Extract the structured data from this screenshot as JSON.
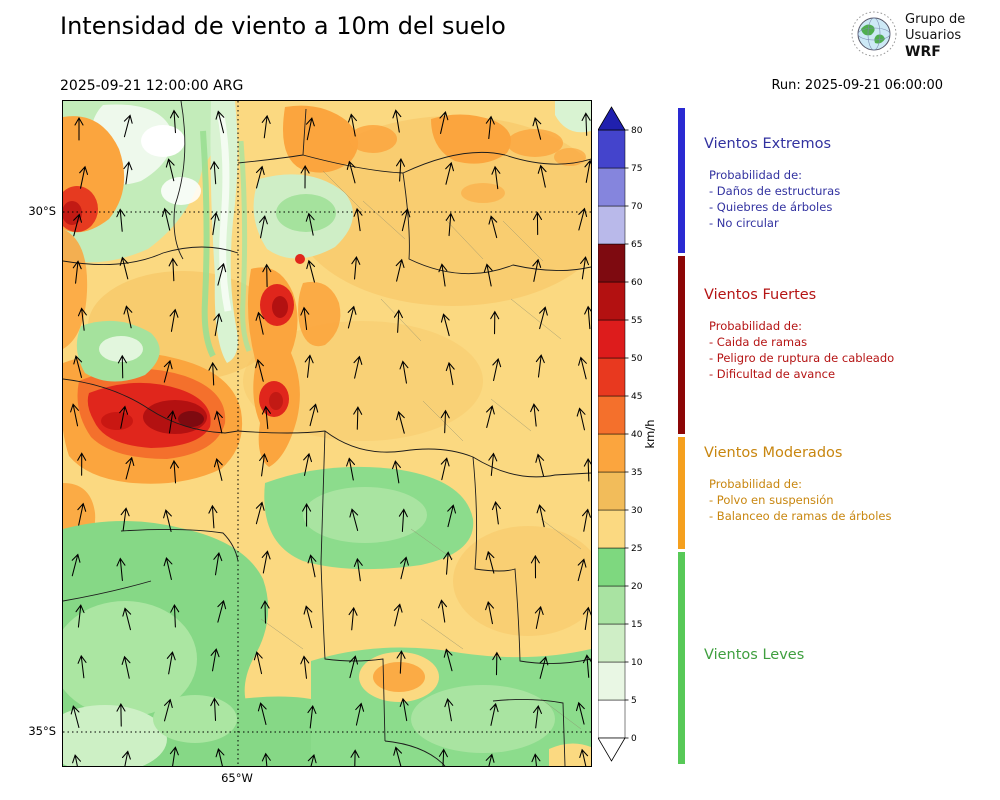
{
  "header": {
    "title": "Intensidad de viento a 10m del suelo",
    "valid_datetime": "2025-09-21 12:00:00 ARG",
    "run_label": "Run: 2025-09-21 06:00:00",
    "logo": {
      "line1": "Grupo de",
      "line2": "Usuarios",
      "line3": "WRF"
    }
  },
  "map_axes": {
    "lat_top": "30°S",
    "lat_bottom": "35°S",
    "lon": "65°W"
  },
  "colorbar": {
    "unit": "km/h",
    "tick_values": [
      0,
      5,
      10,
      15,
      20,
      25,
      30,
      35,
      40,
      45,
      50,
      55,
      60,
      65,
      70,
      75,
      80
    ],
    "segment_colors_bottom_to_top": [
      "#ffffff",
      "#e9f7e4",
      "#cfeec6",
      "#a9e3a2",
      "#7ed87f",
      "#fbd981",
      "#f2bc5a",
      "#fba53e",
      "#f4702c",
      "#e8391f",
      "#dd1c1c",
      "#b31111",
      "#7e0a10",
      "#b9b9ea",
      "#8585dd",
      "#4444cc"
    ],
    "over_arrow_color": "#2020ae",
    "under_arrow_color": "#ffffff"
  },
  "legend": {
    "sections": [
      {
        "id": "extremos",
        "title": "Vientos Extremos",
        "subtitle": "Probabilidad de:",
        "items": [
          "- Daños de estructuras",
          "- Quiebres de árboles",
          "- No circular"
        ],
        "text_color": "#3232a0",
        "bar_color": "#2a2ad2"
      },
      {
        "id": "fuertes",
        "title": "Vientos Fuertes",
        "subtitle": "Probabilidad de:",
        "items": [
          "- Caida de ramas",
          "- Peligro de ruptura de cableado",
          "- Dificultad de avance"
        ],
        "text_color": "#b51414",
        "bar_color": "#8c0606"
      },
      {
        "id": "moderados",
        "title": "Vientos Moderados",
        "subtitle": "Probabilidad de:",
        "items": [
          "- Polvo en suspensión",
          "- Balanceo de ramas de árboles"
        ],
        "text_color": "#c8860f",
        "bar_color": "#f5a01e"
      },
      {
        "id": "leves",
        "title": "Vientos Leves",
        "subtitle": "",
        "items": [],
        "text_color": "#3f9f3f",
        "bar_color": "#57c957"
      }
    ]
  },
  "chart_data": {
    "type": "heatmap",
    "title": "Intensidad de viento a 10m del suelo",
    "valid_time": "2025-09-21 12:00:00 ARG",
    "run_time": "2025-09-21 06:00:00",
    "units": "km/h",
    "x_ticks": [
      "65°W"
    ],
    "y_ticks": [
      "30°S",
      "35°S"
    ],
    "zlim": [
      0,
      80
    ],
    "contour_interval": 5,
    "overlay": "wind direction arrows pointing roughly northward across the whole map",
    "wind_speed_estimate_grid": {
      "order": "rows north to south, columns west to east",
      "values": [
        [
          15,
          8,
          20,
          32,
          38,
          32,
          30,
          32,
          35,
          30
        ],
        [
          40,
          25,
          10,
          25,
          30,
          28,
          30,
          28,
          28,
          28
        ],
        [
          35,
          30,
          20,
          42,
          28,
          22,
          28,
          28,
          28,
          28
        ],
        [
          38,
          45,
          35,
          40,
          30,
          28,
          28,
          28,
          26,
          28
        ],
        [
          30,
          52,
          40,
          30,
          28,
          28,
          26,
          22,
          26,
          28
        ],
        [
          20,
          18,
          25,
          28,
          28,
          22,
          20,
          22,
          26,
          28
        ],
        [
          15,
          18,
          20,
          25,
          28,
          28,
          26,
          28,
          28,
          22
        ],
        [
          12,
          15,
          18,
          22,
          28,
          26,
          28,
          22,
          20,
          18
        ]
      ]
    }
  }
}
